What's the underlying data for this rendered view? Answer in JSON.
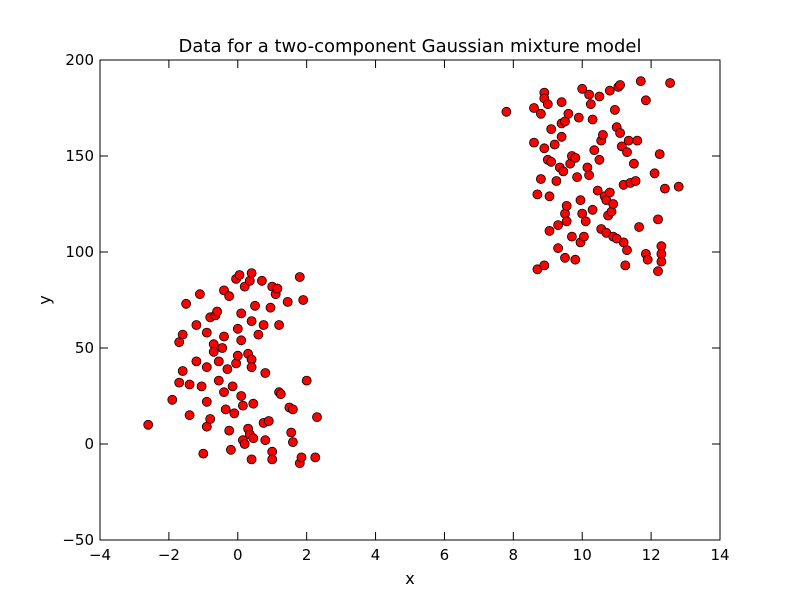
{
  "chart_data": {
    "type": "scatter",
    "title": "Data for a two-component Gaussian mixture model",
    "xlabel": "x",
    "ylabel": "y",
    "xlim": [
      -4,
      14
    ],
    "ylim": [
      -50,
      200
    ],
    "xticks": [
      -4,
      -2,
      0,
      2,
      4,
      6,
      8,
      10,
      12,
      14
    ],
    "xtick_labels": [
      "−4",
      "−2",
      "0",
      "2",
      "4",
      "6",
      "8",
      "10",
      "12",
      "14"
    ],
    "yticks": [
      -50,
      0,
      50,
      100,
      150,
      200
    ],
    "ytick_labels": [
      "−50",
      "0",
      "50",
      "100",
      "150",
      "200"
    ],
    "grid": false,
    "legend": false,
    "marker_color": "#ff0000",
    "marker_edge_color": "#000000",
    "series": [
      {
        "points": [
          [
            -2.6,
            10
          ],
          [
            -1.9,
            23
          ],
          [
            -1.7,
            53
          ],
          [
            -1.6,
            57
          ],
          [
            -1.6,
            38
          ],
          [
            -1.7,
            32
          ],
          [
            -1.5,
            73
          ],
          [
            -1.4,
            15
          ],
          [
            -1.4,
            31
          ],
          [
            -1.2,
            62
          ],
          [
            -1.2,
            43
          ],
          [
            -1.1,
            78
          ],
          [
            -1.05,
            30
          ],
          [
            -1.0,
            -5
          ],
          [
            -0.9,
            58
          ],
          [
            -0.9,
            40
          ],
          [
            -0.9,
            22
          ],
          [
            -0.9,
            9
          ],
          [
            -0.8,
            66
          ],
          [
            -0.8,
            13
          ],
          [
            -0.7,
            52
          ],
          [
            -0.7,
            48
          ],
          [
            -0.65,
            67
          ],
          [
            -0.6,
            69
          ],
          [
            -0.55,
            43
          ],
          [
            -0.55,
            33
          ],
          [
            -0.45,
            50
          ],
          [
            -0.4,
            80
          ],
          [
            -0.4,
            56
          ],
          [
            -0.4,
            27
          ],
          [
            -0.35,
            18
          ],
          [
            -0.3,
            39
          ],
          [
            -0.25,
            7
          ],
          [
            -0.25,
            77
          ],
          [
            -0.2,
            -3
          ],
          [
            -0.15,
            30
          ],
          [
            -0.1,
            16
          ],
          [
            -0.05,
            86
          ],
          [
            -0.05,
            42
          ],
          [
            0.0,
            60
          ],
          [
            0.0,
            46
          ],
          [
            0.05,
            88
          ],
          [
            0.1,
            68
          ],
          [
            0.1,
            54
          ],
          [
            0.1,
            25
          ],
          [
            0.15,
            20
          ],
          [
            0.15,
            2
          ],
          [
            0.2,
            82
          ],
          [
            0.2,
            0
          ],
          [
            0.3,
            47
          ],
          [
            0.3,
            8
          ],
          [
            0.35,
            5
          ],
          [
            0.35,
            85
          ],
          [
            0.4,
            89
          ],
          [
            0.4,
            64
          ],
          [
            0.4,
            44
          ],
          [
            0.4,
            40
          ],
          [
            0.4,
            -8
          ],
          [
            0.45,
            21
          ],
          [
            0.45,
            3
          ],
          [
            0.5,
            72
          ],
          [
            0.6,
            57
          ],
          [
            0.7,
            85
          ],
          [
            0.75,
            11
          ],
          [
            0.75,
            62
          ],
          [
            0.8,
            2
          ],
          [
            0.8,
            37
          ],
          [
            0.9,
            12
          ],
          [
            0.95,
            71
          ],
          [
            1.0,
            82
          ],
          [
            1.0,
            -4
          ],
          [
            1.0,
            -8
          ],
          [
            1.1,
            78
          ],
          [
            1.15,
            81
          ],
          [
            1.2,
            62
          ],
          [
            1.2,
            27
          ],
          [
            1.25,
            26
          ],
          [
            1.45,
            74
          ],
          [
            1.5,
            19
          ],
          [
            1.55,
            6
          ],
          [
            1.6,
            1
          ],
          [
            1.6,
            18
          ],
          [
            1.8,
            87
          ],
          [
            1.8,
            -10
          ],
          [
            1.85,
            -7
          ],
          [
            1.9,
            75
          ],
          [
            2.0,
            33
          ],
          [
            2.25,
            -7
          ],
          [
            2.3,
            14
          ]
        ]
      },
      {
        "points": [
          [
            7.8,
            173
          ],
          [
            8.6,
            175
          ],
          [
            8.6,
            157
          ],
          [
            8.7,
            130
          ],
          [
            8.7,
            91
          ],
          [
            8.8,
            172
          ],
          [
            8.8,
            138
          ],
          [
            8.9,
            183
          ],
          [
            8.9,
            180
          ],
          [
            8.9,
            154
          ],
          [
            8.9,
            93
          ],
          [
            9.0,
            177
          ],
          [
            9.0,
            148
          ],
          [
            9.05,
            111
          ],
          [
            9.05,
            129
          ],
          [
            9.1,
            164
          ],
          [
            9.1,
            147
          ],
          [
            9.2,
            156
          ],
          [
            9.25,
            137
          ],
          [
            9.3,
            102
          ],
          [
            9.35,
            144
          ],
          [
            9.4,
            178
          ],
          [
            9.4,
            167
          ],
          [
            9.4,
            160
          ],
          [
            9.45,
            142
          ],
          [
            9.5,
            97
          ],
          [
            9.5,
            120
          ],
          [
            9.5,
            168
          ],
          [
            9.55,
            124
          ],
          [
            9.55,
            116
          ],
          [
            9.6,
            172
          ],
          [
            9.65,
            146
          ],
          [
            9.7,
            150
          ],
          [
            9.7,
            108
          ],
          [
            9.8,
            96
          ],
          [
            9.8,
            149
          ],
          [
            9.85,
            139
          ],
          [
            9.9,
            170
          ],
          [
            9.95,
            105
          ],
          [
            9.95,
            127
          ],
          [
            10.0,
            185
          ],
          [
            10.05,
            108
          ],
          [
            10.1,
            116
          ],
          [
            10.15,
            144
          ],
          [
            10.2,
            140
          ],
          [
            10.2,
            182
          ],
          [
            10.25,
            177
          ],
          [
            10.3,
            169
          ],
          [
            10.3,
            122
          ],
          [
            10.35,
            153
          ],
          [
            10.45,
            132
          ],
          [
            10.5,
            181
          ],
          [
            10.55,
            112
          ],
          [
            10.55,
            158
          ],
          [
            10.6,
            161
          ],
          [
            10.65,
            129
          ],
          [
            10.7,
            127
          ],
          [
            10.7,
            110
          ],
          [
            10.75,
            119
          ],
          [
            10.8,
            184
          ],
          [
            10.8,
            131
          ],
          [
            10.85,
            121
          ],
          [
            10.9,
            108
          ],
          [
            10.9,
            125
          ],
          [
            10.95,
            174
          ],
          [
            11.0,
            165
          ],
          [
            11.05,
            186
          ],
          [
            11.1,
            187
          ],
          [
            11.1,
            162
          ],
          [
            11.15,
            155
          ],
          [
            11.2,
            135
          ],
          [
            11.2,
            105
          ],
          [
            11.25,
            93
          ],
          [
            11.3,
            101
          ],
          [
            11.3,
            152
          ],
          [
            11.35,
            158
          ],
          [
            11.4,
            136
          ],
          [
            11.5,
            146
          ],
          [
            11.55,
            137
          ],
          [
            11.6,
            158
          ],
          [
            11.65,
            113
          ],
          [
            11.7,
            189
          ],
          [
            11.85,
            179
          ],
          [
            11.85,
            99
          ],
          [
            12.1,
            141
          ],
          [
            12.2,
            117
          ],
          [
            12.2,
            90
          ],
          [
            12.25,
            151
          ],
          [
            12.3,
            103
          ],
          [
            12.3,
            99
          ],
          [
            12.3,
            95
          ],
          [
            12.55,
            188
          ],
          [
            12.8,
            134
          ],
          [
            12.4,
            133
          ],
          [
            11.0,
            107
          ],
          [
            10.0,
            120
          ],
          [
            9.3,
            114
          ],
          [
            10.5,
            148
          ],
          [
            11.9,
            96
          ]
        ]
      }
    ]
  }
}
